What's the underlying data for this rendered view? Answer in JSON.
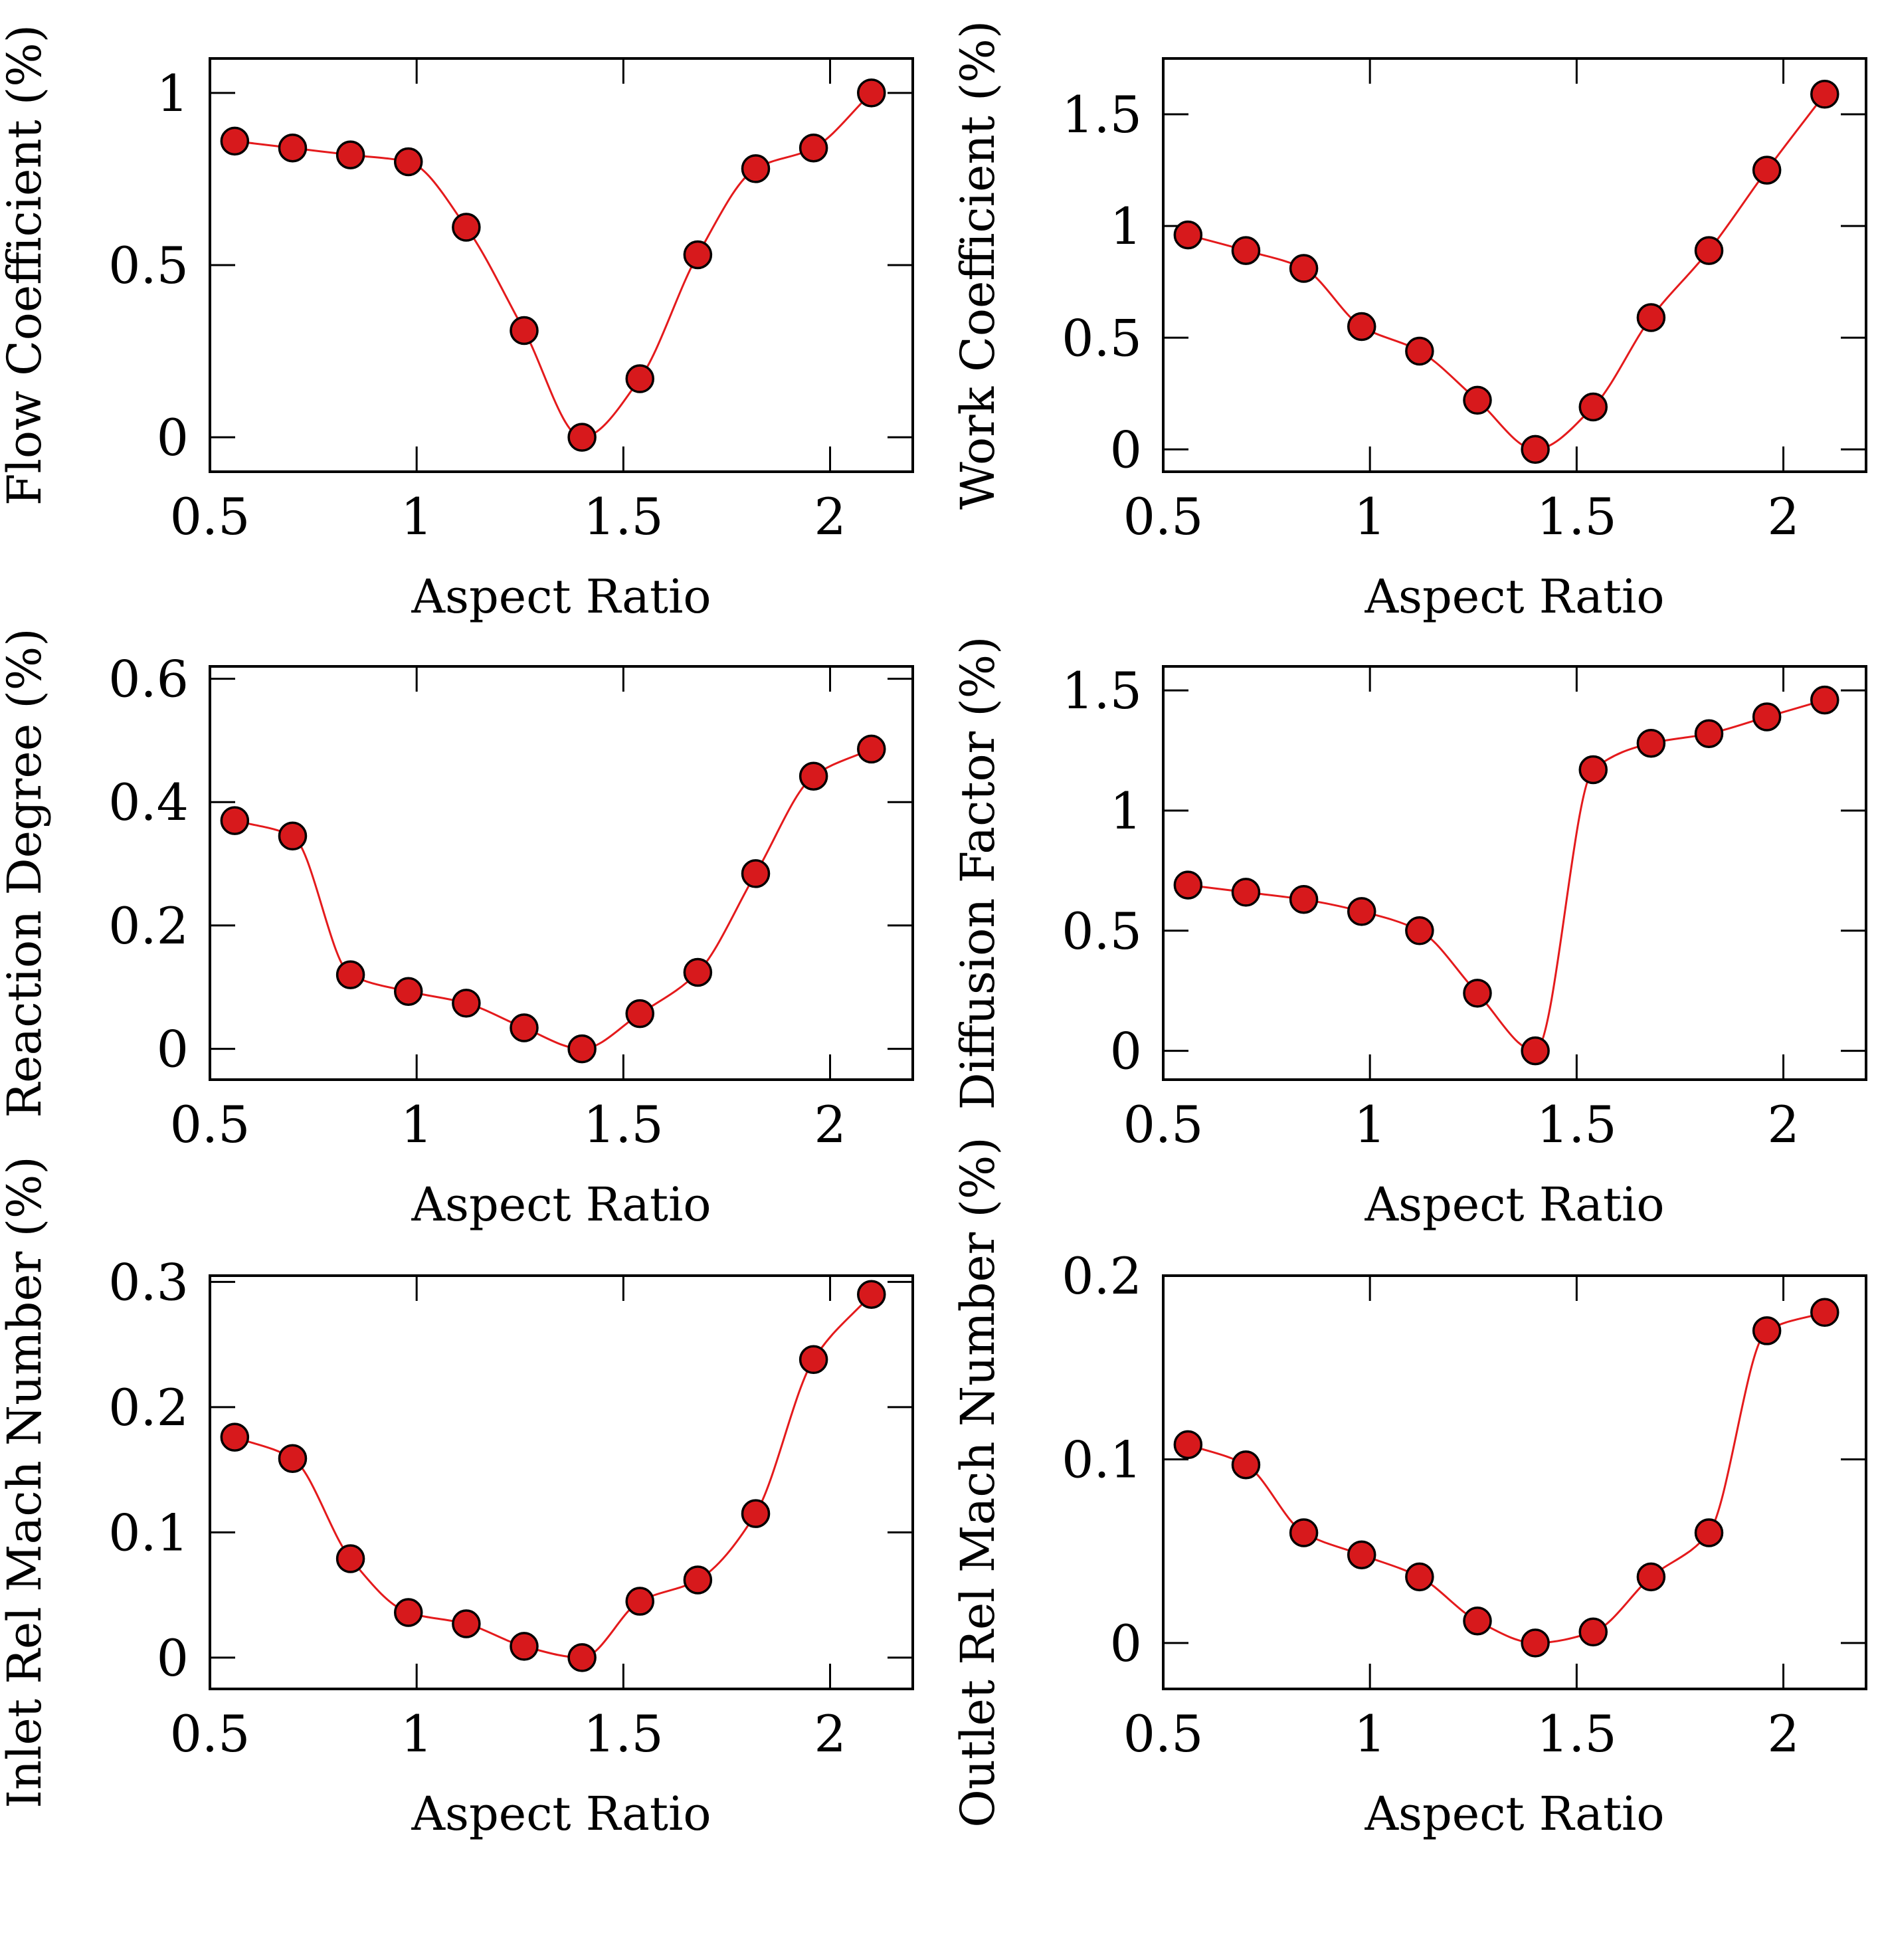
{
  "chart_data": [
    {
      "type": "line",
      "xlabel": "Aspect Ratio",
      "ylabel": "Flow Coefficient (%)",
      "xlim": [
        0.5,
        2.2
      ],
      "ylim": [
        -0.1,
        1.1
      ],
      "xticks": [
        0.5,
        1,
        1.5,
        2
      ],
      "yticks": [
        0,
        0.5,
        1
      ],
      "xtick_labels": [
        "0.5",
        "1",
        "1.5",
        "2"
      ],
      "ytick_labels": [
        "0",
        "0.5",
        "1"
      ],
      "x": [
        0.56,
        0.7,
        0.84,
        0.98,
        1.12,
        1.26,
        1.4,
        1.54,
        1.68,
        1.82,
        1.96,
        2.1
      ],
      "series": [
        {
          "name": "Flow Coefficient",
          "values": [
            0.86,
            0.84,
            0.82,
            0.8,
            0.61,
            0.31,
            0.0,
            0.17,
            0.53,
            0.78,
            0.84,
            1.0
          ]
        }
      ]
    },
    {
      "type": "line",
      "xlabel": "Aspect Ratio",
      "ylabel": "Work Coefficient (%)",
      "xlim": [
        0.5,
        2.2
      ],
      "ylim": [
        -0.1,
        1.75
      ],
      "xticks": [
        0.5,
        1,
        1.5,
        2
      ],
      "yticks": [
        0,
        0.5,
        1,
        1.5
      ],
      "xtick_labels": [
        "0.5",
        "1",
        "1.5",
        "2"
      ],
      "ytick_labels": [
        "0",
        "0.5",
        "1",
        "1.5"
      ],
      "x": [
        0.56,
        0.7,
        0.84,
        0.98,
        1.12,
        1.26,
        1.4,
        1.54,
        1.68,
        1.82,
        1.96,
        2.1
      ],
      "series": [
        {
          "name": "Work Coefficient",
          "values": [
            0.96,
            0.89,
            0.81,
            0.55,
            0.44,
            0.22,
            0.0,
            0.19,
            0.59,
            0.89,
            1.25,
            1.59
          ]
        }
      ]
    },
    {
      "type": "line",
      "xlabel": "Aspect Ratio",
      "ylabel": "Reaction Degree (%)",
      "xlim": [
        0.5,
        2.2
      ],
      "ylim": [
        -0.05,
        0.62
      ],
      "xticks": [
        0.5,
        1,
        1.5,
        2
      ],
      "yticks": [
        0,
        0.2,
        0.4,
        0.6
      ],
      "xtick_labels": [
        "0.5",
        "1",
        "1.5",
        "2"
      ],
      "ytick_labels": [
        "0",
        "0.2",
        "0.4",
        "0.6"
      ],
      "x": [
        0.56,
        0.7,
        0.84,
        0.98,
        1.12,
        1.26,
        1.4,
        1.54,
        1.68,
        1.82,
        1.96,
        2.1
      ],
      "series": [
        {
          "name": "Reaction Degree",
          "values": [
            0.37,
            0.345,
            0.12,
            0.093,
            0.074,
            0.034,
            0.0,
            0.057,
            0.124,
            0.284,
            0.442,
            0.486
          ]
        }
      ]
    },
    {
      "type": "line",
      "xlabel": "Aspect Ratio",
      "ylabel": "Diffusion Factor (%)",
      "xlim": [
        0.5,
        2.2
      ],
      "ylim": [
        -0.12,
        1.6
      ],
      "xticks": [
        0.5,
        1,
        1.5,
        2
      ],
      "yticks": [
        0,
        0.5,
        1,
        1.5
      ],
      "xtick_labels": [
        "0.5",
        "1",
        "1.5",
        "2"
      ],
      "ytick_labels": [
        "0",
        "0.5",
        "1",
        "1.5"
      ],
      "x": [
        0.56,
        0.7,
        0.84,
        0.98,
        1.12,
        1.26,
        1.4,
        1.54,
        1.68,
        1.82,
        1.96,
        2.1
      ],
      "series": [
        {
          "name": "Diffusion Factor",
          "values": [
            0.69,
            0.66,
            0.63,
            0.58,
            0.5,
            0.24,
            0.0,
            1.17,
            1.28,
            1.32,
            1.39,
            1.46
          ]
        }
      ]
    },
    {
      "type": "line",
      "xlabel": "Aspect Ratio",
      "ylabel": "Inlet Rel Mach Number (%)",
      "xlim": [
        0.5,
        2.2
      ],
      "ylim": [
        -0.025,
        0.305
      ],
      "xticks": [
        0.5,
        1,
        1.5,
        2
      ],
      "yticks": [
        0,
        0.1,
        0.2,
        0.3
      ],
      "xtick_labels": [
        "0.5",
        "1",
        "1.5",
        "2"
      ],
      "ytick_labels": [
        "0",
        "0.1",
        "0.2",
        "0.3"
      ],
      "x": [
        0.56,
        0.7,
        0.84,
        0.98,
        1.12,
        1.26,
        1.4,
        1.54,
        1.68,
        1.82,
        1.96,
        2.1
      ],
      "series": [
        {
          "name": "Inlet Rel Mach Number",
          "values": [
            0.176,
            0.159,
            0.079,
            0.036,
            0.027,
            0.009,
            0.0,
            0.045,
            0.062,
            0.115,
            0.238,
            0.29
          ]
        }
      ]
    },
    {
      "type": "line",
      "xlabel": "Aspect Ratio",
      "ylabel": "Outlet Rel Mach Number (%)",
      "xlim": [
        0.5,
        2.2
      ],
      "ylim": [
        -0.025,
        0.2
      ],
      "xticks": [
        0.5,
        1,
        1.5,
        2
      ],
      "yticks": [
        0,
        0.1,
        0.2
      ],
      "xtick_labels": [
        "0.5",
        "1",
        "1.5",
        "2"
      ],
      "ytick_labels": [
        "0",
        "0.1",
        "0.2"
      ],
      "x": [
        0.56,
        0.7,
        0.84,
        0.98,
        1.12,
        1.26,
        1.4,
        1.54,
        1.68,
        1.82,
        1.96,
        2.1
      ],
      "series": [
        {
          "name": "Outlet Rel Mach Number",
          "values": [
            0.108,
            0.097,
            0.06,
            0.048,
            0.036,
            0.012,
            0.0,
            0.006,
            0.036,
            0.06,
            0.17,
            0.18
          ]
        }
      ]
    }
  ]
}
